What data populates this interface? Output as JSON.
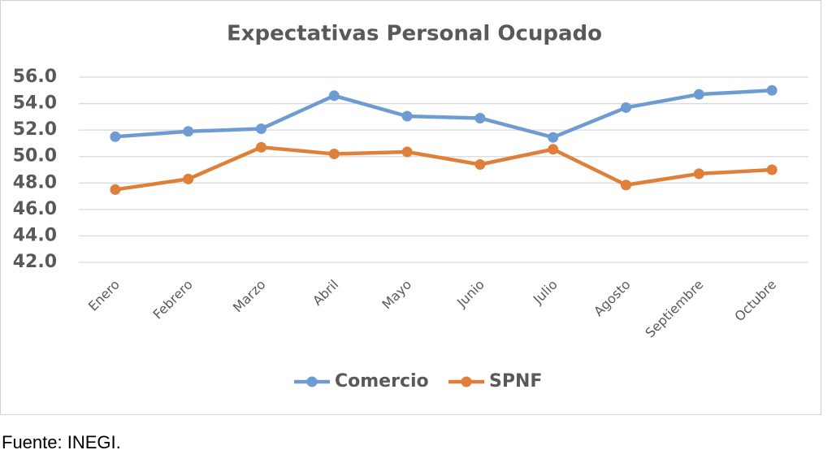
{
  "chart_data": {
    "type": "line",
    "title": "Expectativas Personal Ocupado",
    "categories": [
      "Enero",
      "Febrero",
      "Marzo",
      "Abril",
      "Mayo",
      "Junio",
      "Julio",
      "Agosto",
      "Septiembre",
      "Octubre"
    ],
    "series": [
      {
        "name": "Comercio",
        "color": "#6f9bd3",
        "values": [
          51.5,
          51.9,
          52.1,
          54.6,
          53.05,
          52.9,
          51.45,
          53.7,
          54.7,
          55.0
        ]
      },
      {
        "name": "SPNF",
        "color": "#e07f3a",
        "values": [
          47.5,
          48.3,
          50.7,
          50.2,
          50.35,
          49.4,
          50.55,
          47.85,
          48.7,
          49.0
        ]
      }
    ],
    "ylim": [
      42,
      56
    ],
    "yticks": [
      {
        "value": 42,
        "label": "42.0"
      },
      {
        "value": 44,
        "label": "44.0"
      },
      {
        "value": 46,
        "label": "46.0"
      },
      {
        "value": 48,
        "label": "48.0"
      },
      {
        "value": 50,
        "label": "50.0"
      },
      {
        "value": 52,
        "label": "52.0"
      },
      {
        "value": 54,
        "label": "54.0"
      },
      {
        "value": 56,
        "label": "56.0"
      }
    ],
    "grid": true,
    "legend": "bottom"
  },
  "source": "Fuente: INEGI."
}
